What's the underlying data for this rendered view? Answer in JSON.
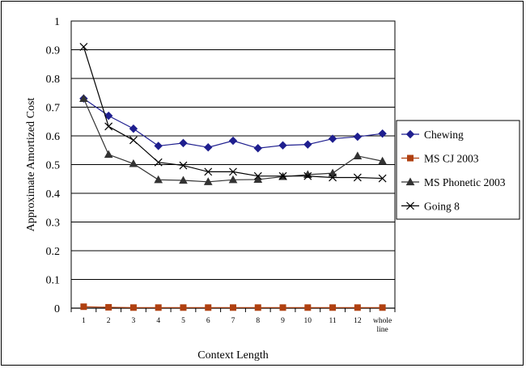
{
  "chart_data": {
    "type": "line",
    "xlabel": "Context Length",
    "ylabel": "Approximate Amortized Cost",
    "ylim": [
      0,
      1
    ],
    "yticks": [
      "0",
      "0.1",
      "0.2",
      "0.3",
      "0.4",
      "0.5",
      "0.6",
      "0.7",
      "0.8",
      "0.9",
      "1"
    ],
    "categories": [
      "1",
      "2",
      "3",
      "4",
      "5",
      "6",
      "7",
      "8",
      "9",
      "10",
      "11",
      "12",
      "whole line"
    ],
    "grid": "horizontal",
    "legend_position": "right",
    "series": [
      {
        "name": "Chewing",
        "color": "#1f1f8f",
        "marker": "diamond",
        "values": [
          0.73,
          0.67,
          0.625,
          0.565,
          0.575,
          0.56,
          0.583,
          0.557,
          0.567,
          0.57,
          0.59,
          0.597,
          0.608
        ]
      },
      {
        "name": "MS CJ 2003",
        "color": "#b04010",
        "marker": "square",
        "values": [
          0.005,
          0.003,
          0.002,
          0.002,
          0.002,
          0.002,
          0.002,
          0.002,
          0.002,
          0.002,
          0.002,
          0.002,
          0.002
        ]
      },
      {
        "name": "MS Phonetic 2003",
        "color": "#333333",
        "marker": "triangle",
        "values": [
          0.73,
          0.535,
          0.503,
          0.447,
          0.445,
          0.44,
          0.447,
          0.448,
          0.458,
          0.465,
          0.47,
          0.53,
          0.512
        ]
      },
      {
        "name": "Going 8",
        "color": "#000000",
        "marker": "x",
        "values": [
          0.91,
          0.633,
          0.585,
          0.508,
          0.497,
          0.475,
          0.475,
          0.46,
          0.46,
          0.46,
          0.455,
          0.455,
          0.452
        ]
      }
    ]
  }
}
